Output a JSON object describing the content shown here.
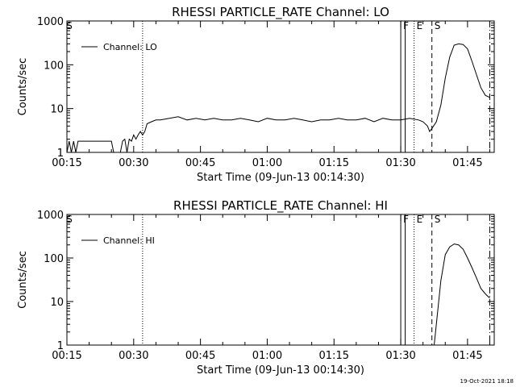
{
  "footer": {
    "date": "19-Oct-2021 18:18"
  },
  "chart_data": [
    {
      "type": "line",
      "title": "RHESSI PARTICLE_RATE Channel: LO",
      "xlabel": "Start Time (09-Jun-13 00:14:30)",
      "ylabel": "Counts/sec",
      "yscale": "log",
      "ylim": [
        1,
        1000
      ],
      "xlim": [
        "00:15",
        "01:51"
      ],
      "xticks": [
        "00:15",
        "00:30",
        "00:45",
        "01:00",
        "01:15",
        "01:30",
        "01:45"
      ],
      "yticks": [
        "1",
        "10",
        "100",
        "1000"
      ],
      "legend": {
        "entries": [
          "Channel: LO"
        ],
        "position": "top-left"
      },
      "markers": [
        {
          "label": "S",
          "time": "00:14:30",
          "style": "none"
        },
        {
          "label": "",
          "time": "00:32:00",
          "style": "dotted"
        },
        {
          "label": "F",
          "time": "01:30:00",
          "style": "solid"
        },
        {
          "label": "",
          "time": "01:31:00",
          "style": "solid"
        },
        {
          "label": "E",
          "time": "01:33:00",
          "style": "dotted"
        },
        {
          "label": "S",
          "time": "01:37:00",
          "style": "dashed"
        },
        {
          "label": "",
          "time": "01:50:00",
          "style": "dashdot"
        }
      ],
      "series": [
        {
          "name": "Channel: LO",
          "x": [
            "00:14:30",
            "00:15:00",
            "00:15:30",
            "00:16:00",
            "00:16:30",
            "00:17:00",
            "00:17:30",
            "00:18:00",
            "00:19:00",
            "00:20:00",
            "00:22:00",
            "00:24:00",
            "00:25:00",
            "00:25:30",
            "00:26:00",
            "00:27:00",
            "00:27:30",
            "00:28:00",
            "00:28:30",
            "00:29:00",
            "00:29:30",
            "00:30:00",
            "00:30:30",
            "00:31:00",
            "00:31:30",
            "00:32:00",
            "00:32:30",
            "00:33:00",
            "00:34:00",
            "00:35:00",
            "00:36:00",
            "00:38:00",
            "00:40:00",
            "00:42:00",
            "00:44:00",
            "00:46:00",
            "00:48:00",
            "00:50:00",
            "00:52:00",
            "00:54:00",
            "00:56:00",
            "00:58:00",
            "01:00:00",
            "01:02:00",
            "01:04:00",
            "01:06:00",
            "01:08:00",
            "01:10:00",
            "01:12:00",
            "01:14:00",
            "01:16:00",
            "01:18:00",
            "01:20:00",
            "01:22:00",
            "01:24:00",
            "01:26:00",
            "01:28:00",
            "01:30:00",
            "01:32:00",
            "01:34:00",
            "01:35:00",
            "01:36:00",
            "01:36:30",
            "01:37:00",
            "01:38:00",
            "01:39:00",
            "01:40:00",
            "01:41:00",
            "01:42:00",
            "01:43:00",
            "01:44:00",
            "01:45:00",
            "01:46:00",
            "01:47:00",
            "01:48:00",
            "01:49:00",
            "01:50:00"
          ],
          "y": [
            1.8,
            1,
            1.8,
            1,
            1.8,
            1,
            1.8,
            1.8,
            1.8,
            1.8,
            1.8,
            1.8,
            1.8,
            1,
            1,
            1,
            1.8,
            2,
            1,
            2,
            1.8,
            2.5,
            2,
            2.5,
            3,
            2.5,
            3,
            4.5,
            5,
            5.5,
            5.5,
            6,
            6.5,
            5.5,
            6,
            5.5,
            6,
            5.5,
            5.5,
            6,
            5.5,
            5,
            6,
            5.5,
            5.5,
            6,
            5.5,
            5,
            5.5,
            5.5,
            6,
            5.5,
            5.5,
            6,
            5,
            6,
            5.5,
            5.5,
            6,
            5.5,
            5,
            4,
            3,
            3.5,
            5,
            12,
            50,
            150,
            280,
            300,
            290,
            230,
            120,
            60,
            30,
            20,
            18
          ]
        }
      ]
    },
    {
      "type": "line",
      "title": "RHESSI PARTICLE_RATE Channel: HI",
      "xlabel": "Start Time (09-Jun-13 00:14:30)",
      "ylabel": "Counts/sec",
      "yscale": "log",
      "ylim": [
        1,
        1000
      ],
      "xlim": [
        "00:15",
        "01:51"
      ],
      "xticks": [
        "00:15",
        "00:30",
        "00:45",
        "01:00",
        "01:15",
        "01:30",
        "01:45"
      ],
      "yticks": [
        "1",
        "10",
        "100",
        "1000"
      ],
      "legend": {
        "entries": [
          "Channel: HI"
        ],
        "position": "top-left"
      },
      "markers": [
        {
          "label": "S",
          "time": "00:14:30",
          "style": "none"
        },
        {
          "label": "",
          "time": "00:32:00",
          "style": "dotted"
        },
        {
          "label": "F",
          "time": "01:30:00",
          "style": "solid"
        },
        {
          "label": "",
          "time": "01:31:00",
          "style": "solid"
        },
        {
          "label": "E",
          "time": "01:33:00",
          "style": "dotted"
        },
        {
          "label": "S",
          "time": "01:37:00",
          "style": "dashed"
        },
        {
          "label": "",
          "time": "01:50:00",
          "style": "dashdot"
        }
      ],
      "series": [
        {
          "name": "Channel: HI",
          "x": [
            "01:37:30",
            "01:38:00",
            "01:39:00",
            "01:40:00",
            "01:41:00",
            "01:42:00",
            "01:43:00",
            "01:44:00",
            "01:45:00",
            "01:46:00",
            "01:47:00",
            "01:48:00",
            "01:49:00",
            "01:50:00"
          ],
          "y": [
            1,
            3,
            30,
            120,
            180,
            210,
            200,
            160,
            100,
            60,
            35,
            20,
            15,
            12
          ]
        }
      ]
    }
  ]
}
